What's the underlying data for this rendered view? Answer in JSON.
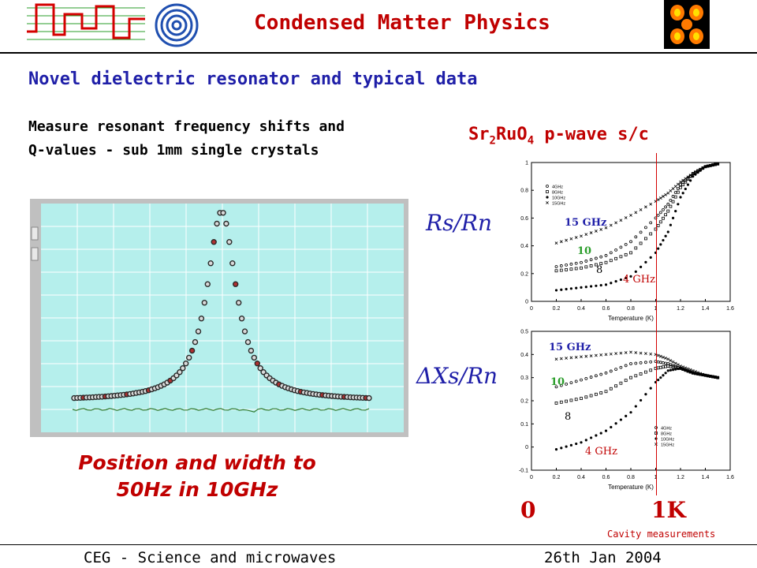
{
  "header": {
    "title": "Condensed Matter Physics"
  },
  "subtitle": "Novel dielectric resonator and typical data",
  "description": {
    "line1": "Measure resonant frequency shifts and",
    "line2": "Q-values - sub 1mm single crystals"
  },
  "material": {
    "formula_a": "Sr",
    "sub_a": "2",
    "formula_b": "RuO",
    "sub_b": "4",
    "rest": " p-wave s/c"
  },
  "resonance_caption": {
    "line1": "Position and width to",
    "line2": "50Hz in 10GHz"
  },
  "labels": {
    "rs": "Rs/Rn",
    "xs": "ΔXs/Rn",
    "axis_zero": "0",
    "axis_onek": "1K",
    "cavity": "Cavity measurements",
    "freq_15": "15 GHz",
    "freq_10": "10",
    "freq_8": "8",
    "freq_4": "4 GHz",
    "temp_axis": "Temperature (K)",
    "legend": [
      "4GHz",
      "8GHz",
      "10GHz",
      "15GHz"
    ]
  },
  "footer": {
    "left": "CEG - Science and microwaves",
    "right": "26th Jan 2004"
  },
  "colors": {
    "accent_red": "#c00000",
    "title_blue": "#1f1fa8",
    "plot_bg": "#b5efec"
  },
  "chart_data": [
    {
      "type": "scatter",
      "title": "",
      "description_points": "Lorentzian resonance peak",
      "x": [
        -1.0,
        -0.9,
        -0.8,
        -0.7,
        -0.6,
        -0.5,
        -0.4,
        -0.3,
        -0.2,
        -0.1,
        0.0,
        0.1,
        0.2,
        0.3,
        0.4,
        0.5,
        0.6,
        0.7,
        0.8,
        0.9,
        1.0
      ],
      "peak_center": 0.0,
      "peak_width": 0.12,
      "baseline": 0.05,
      "peak_height": 1.0
    },
    {
      "type": "scatter",
      "xlabel": "Temperature (K)",
      "ylabel": "",
      "xlim": [
        0,
        1.6
      ],
      "ylim": [
        0,
        1.0
      ],
      "xticks": [
        "0",
        "0.2",
        "0.4",
        "0.6",
        "0.8",
        "1",
        "1.2",
        "1.4",
        "1.6"
      ],
      "yticks": [
        "0",
        "0.2",
        "0.4",
        "0.6",
        "0.8",
        "1"
      ],
      "series": [
        {
          "name": "15 GHz",
          "x": [
            0.2,
            0.4,
            0.6,
            0.8,
            1.0,
            1.1,
            1.2,
            1.3,
            1.4,
            1.5
          ],
          "y": [
            0.42,
            0.47,
            0.53,
            0.62,
            0.72,
            0.78,
            0.86,
            0.92,
            0.97,
            0.99
          ]
        },
        {
          "name": "10",
          "x": [
            0.2,
            0.4,
            0.6,
            0.8,
            1.0,
            1.1,
            1.2,
            1.3,
            1.4,
            1.5
          ],
          "y": [
            0.25,
            0.28,
            0.33,
            0.43,
            0.6,
            0.7,
            0.84,
            0.92,
            0.97,
            0.99
          ]
        },
        {
          "name": "8",
          "x": [
            0.2,
            0.4,
            0.6,
            0.8,
            1.0,
            1.1,
            1.2,
            1.3,
            1.4,
            1.5
          ],
          "y": [
            0.22,
            0.24,
            0.28,
            0.35,
            0.52,
            0.65,
            0.82,
            0.92,
            0.97,
            0.99
          ]
        },
        {
          "name": "4 GHz",
          "x": [
            0.2,
            0.4,
            0.6,
            0.8,
            1.0,
            1.1,
            1.2,
            1.3,
            1.4,
            1.5
          ],
          "y": [
            0.08,
            0.1,
            0.12,
            0.18,
            0.35,
            0.5,
            0.75,
            0.9,
            0.97,
            0.99
          ]
        }
      ]
    },
    {
      "type": "scatter",
      "xlabel": "Temperature (K)",
      "ylabel": "",
      "xlim": [
        0,
        1.6
      ],
      "ylim": [
        -0.1,
        0.5
      ],
      "xticks": [
        "0",
        "0.2",
        "0.4",
        "0.6",
        "0.8",
        "1",
        "1.2",
        "1.4",
        "1.6"
      ],
      "yticks": [
        "-0.1",
        "0",
        "0.1",
        "0.2",
        "0.3",
        "0.4",
        "0.5"
      ],
      "series": [
        {
          "name": "15 GHz",
          "x": [
            0.2,
            0.4,
            0.6,
            0.8,
            1.0,
            1.1,
            1.2,
            1.3,
            1.4,
            1.5
          ],
          "y": [
            0.38,
            0.39,
            0.4,
            0.41,
            0.4,
            0.38,
            0.35,
            0.33,
            0.31,
            0.3
          ]
        },
        {
          "name": "10",
          "x": [
            0.2,
            0.4,
            0.6,
            0.8,
            1.0,
            1.1,
            1.2,
            1.3,
            1.4,
            1.5
          ],
          "y": [
            0.26,
            0.29,
            0.32,
            0.36,
            0.37,
            0.36,
            0.34,
            0.32,
            0.31,
            0.3
          ]
        },
        {
          "name": "8",
          "x": [
            0.2,
            0.4,
            0.6,
            0.8,
            1.0,
            1.1,
            1.2,
            1.3,
            1.4,
            1.5
          ],
          "y": [
            0.19,
            0.21,
            0.24,
            0.3,
            0.34,
            0.35,
            0.34,
            0.32,
            0.31,
            0.3
          ]
        },
        {
          "name": "4 GHz",
          "x": [
            0.2,
            0.4,
            0.6,
            0.8,
            1.0,
            1.1,
            1.2,
            1.3,
            1.4,
            1.5
          ],
          "y": [
            -0.01,
            0.02,
            0.07,
            0.15,
            0.28,
            0.33,
            0.34,
            0.32,
            0.31,
            0.3
          ]
        }
      ]
    }
  ]
}
